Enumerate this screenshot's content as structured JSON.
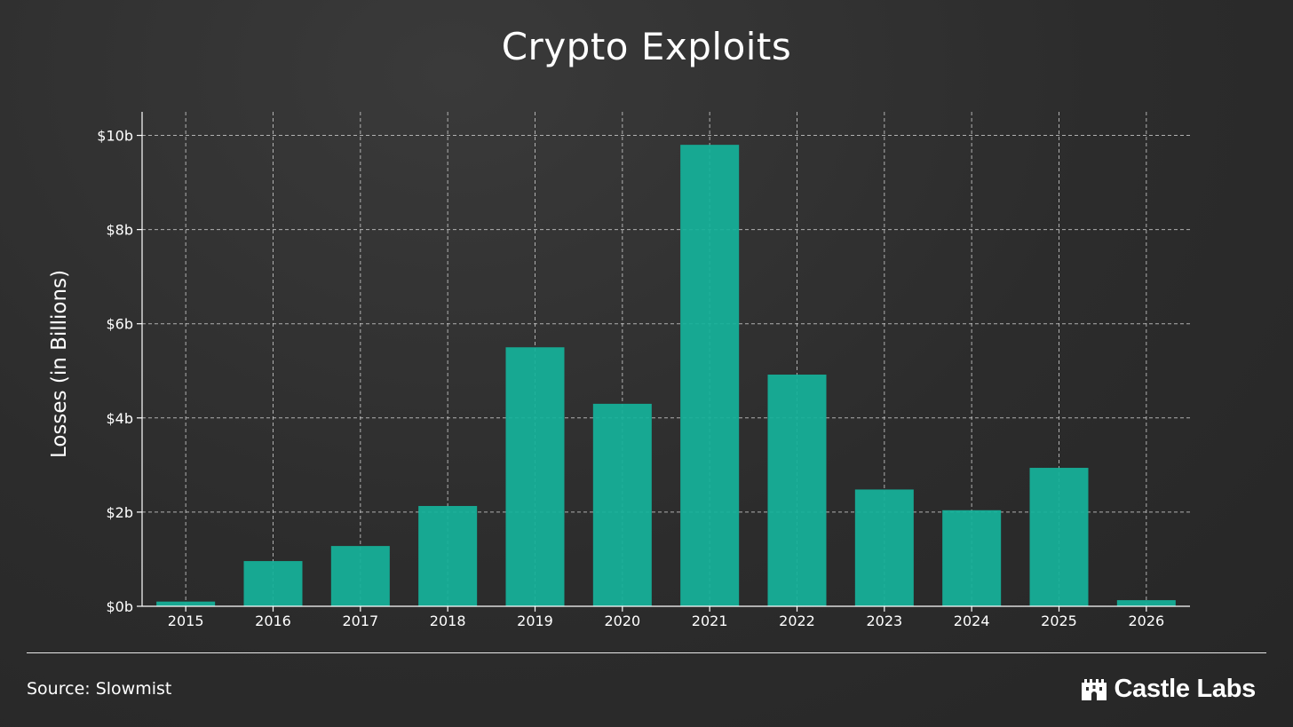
{
  "title": "Crypto Exploits",
  "source_text": "Source: Slowmist",
  "brand": {
    "name": "Castle Labs",
    "icon": "castle-icon"
  },
  "colors": {
    "bar": "#15b29a",
    "grid": "#d0d0d0",
    "text": "#ffffff"
  },
  "chart_data": {
    "type": "bar",
    "title": "Crypto Exploits",
    "xlabel": "",
    "ylabel": "Losses (in Billions)",
    "categories": [
      "2015",
      "2016",
      "2017",
      "2018",
      "2019",
      "2020",
      "2021",
      "2022",
      "2023",
      "2024",
      "2025",
      "2026"
    ],
    "values": [
      0.1,
      0.96,
      1.28,
      2.13,
      5.5,
      4.3,
      9.8,
      4.92,
      2.48,
      2.04,
      2.94,
      0.13
    ],
    "ylim": [
      0,
      10.5
    ],
    "yticks": [
      0,
      2,
      4,
      6,
      8,
      10
    ],
    "ytick_labels": [
      "$0b",
      "$2b",
      "$4b",
      "$6b",
      "$8b",
      "$10b"
    ],
    "grid": true,
    "legend": "none"
  }
}
